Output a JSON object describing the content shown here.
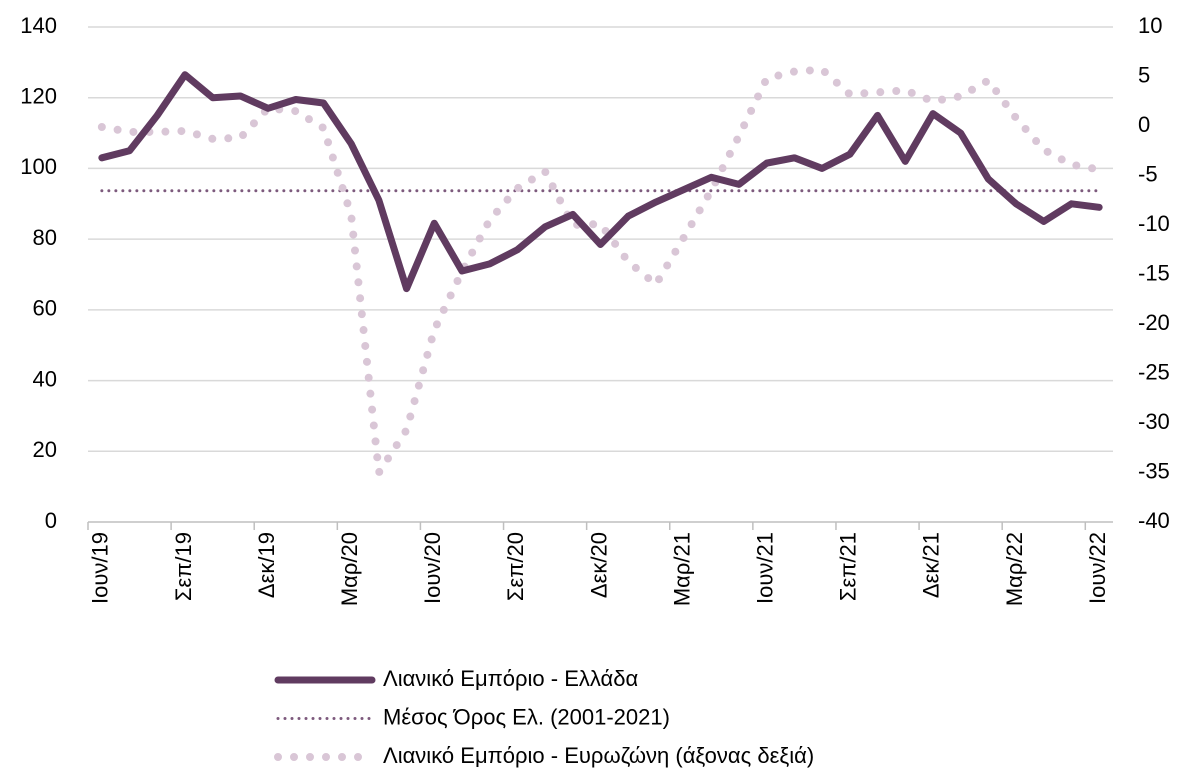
{
  "chart_data": {
    "type": "line",
    "categories": [
      "Ιουν/19",
      null,
      null,
      "Σεπ/19",
      null,
      null,
      "Δεκ/19",
      null,
      null,
      "Μαρ/20",
      null,
      null,
      "Ιουν/20",
      null,
      null,
      "Σεπ/20",
      null,
      null,
      "Δεκ/20",
      null,
      null,
      "Μαρ/21",
      null,
      null,
      "Ιουν/21",
      null,
      null,
      "Σεπ/21",
      null,
      null,
      "Δεκ/21",
      null,
      null,
      "Μαρ/22",
      null,
      null,
      "Ιουν/22"
    ],
    "series": [
      {
        "name": "Λιανικό Εμπόριο  - Ελλάδα",
        "color": "#603b60",
        "style": "solid",
        "values": [
          103,
          105,
          115,
          126.5,
          120,
          120.5,
          117,
          119.5,
          118.5,
          107,
          91,
          66,
          84.5,
          71,
          73,
          77,
          83.5,
          87,
          78.5,
          86.5,
          90.5,
          94,
          97.5,
          95.5,
          101.5,
          103,
          100,
          104,
          115,
          102,
          115.5,
          110,
          97,
          90,
          85,
          90,
          89
        ]
      },
      {
        "name": "Μέσος Όρος Ελ.  (2001-2021)",
        "color": "#7d5a7d",
        "style": "dotted",
        "values": [
          93.7,
          93.7,
          93.7,
          93.7,
          93.7,
          93.7,
          93.7,
          93.7,
          93.7,
          93.7,
          93.7,
          93.7,
          93.7,
          93.7,
          93.7,
          93.7,
          93.7,
          93.7,
          93.7,
          93.7,
          93.7,
          93.7,
          93.7,
          93.7,
          93.7,
          93.7,
          93.7,
          93.7,
          93.7,
          93.7,
          93.7,
          93.7,
          93.7,
          93.7,
          93.7,
          93.7,
          93.7
        ]
      },
      {
        "name": "Λιανικό Εμπόριο - Ευρωζώνη (άξονας δεξιά)",
        "color": "#d9c6d6",
        "style": "dots",
        "axis": "y2",
        "values": [
          -0.1,
          -0.6,
          -0.6,
          -0.5,
          -1.3,
          -1.2,
          1.8,
          1.5,
          -0.2,
          -9,
          -35,
          -30.7,
          -20.6,
          -14.7,
          -9.5,
          -6.3,
          -4.6,
          -10,
          -9.9,
          -13.7,
          -16,
          -11.3,
          -6.5,
          -1,
          4.8,
          5.5,
          5.7,
          3.2,
          3.4,
          3.6,
          2.5,
          3,
          4.6,
          0.8,
          -2.4,
          -3.9,
          -4.4
        ]
      }
    ],
    "ylim": [
      0,
      140
    ],
    "yticks": [
      0,
      20,
      40,
      60,
      80,
      100,
      120,
      140
    ],
    "y2lim": [
      -40,
      10
    ],
    "y2ticks": [
      -40,
      -35,
      -30,
      -25,
      -20,
      -15,
      -10,
      -5,
      0,
      5,
      10
    ],
    "grid": true,
    "legend": "bottom"
  }
}
